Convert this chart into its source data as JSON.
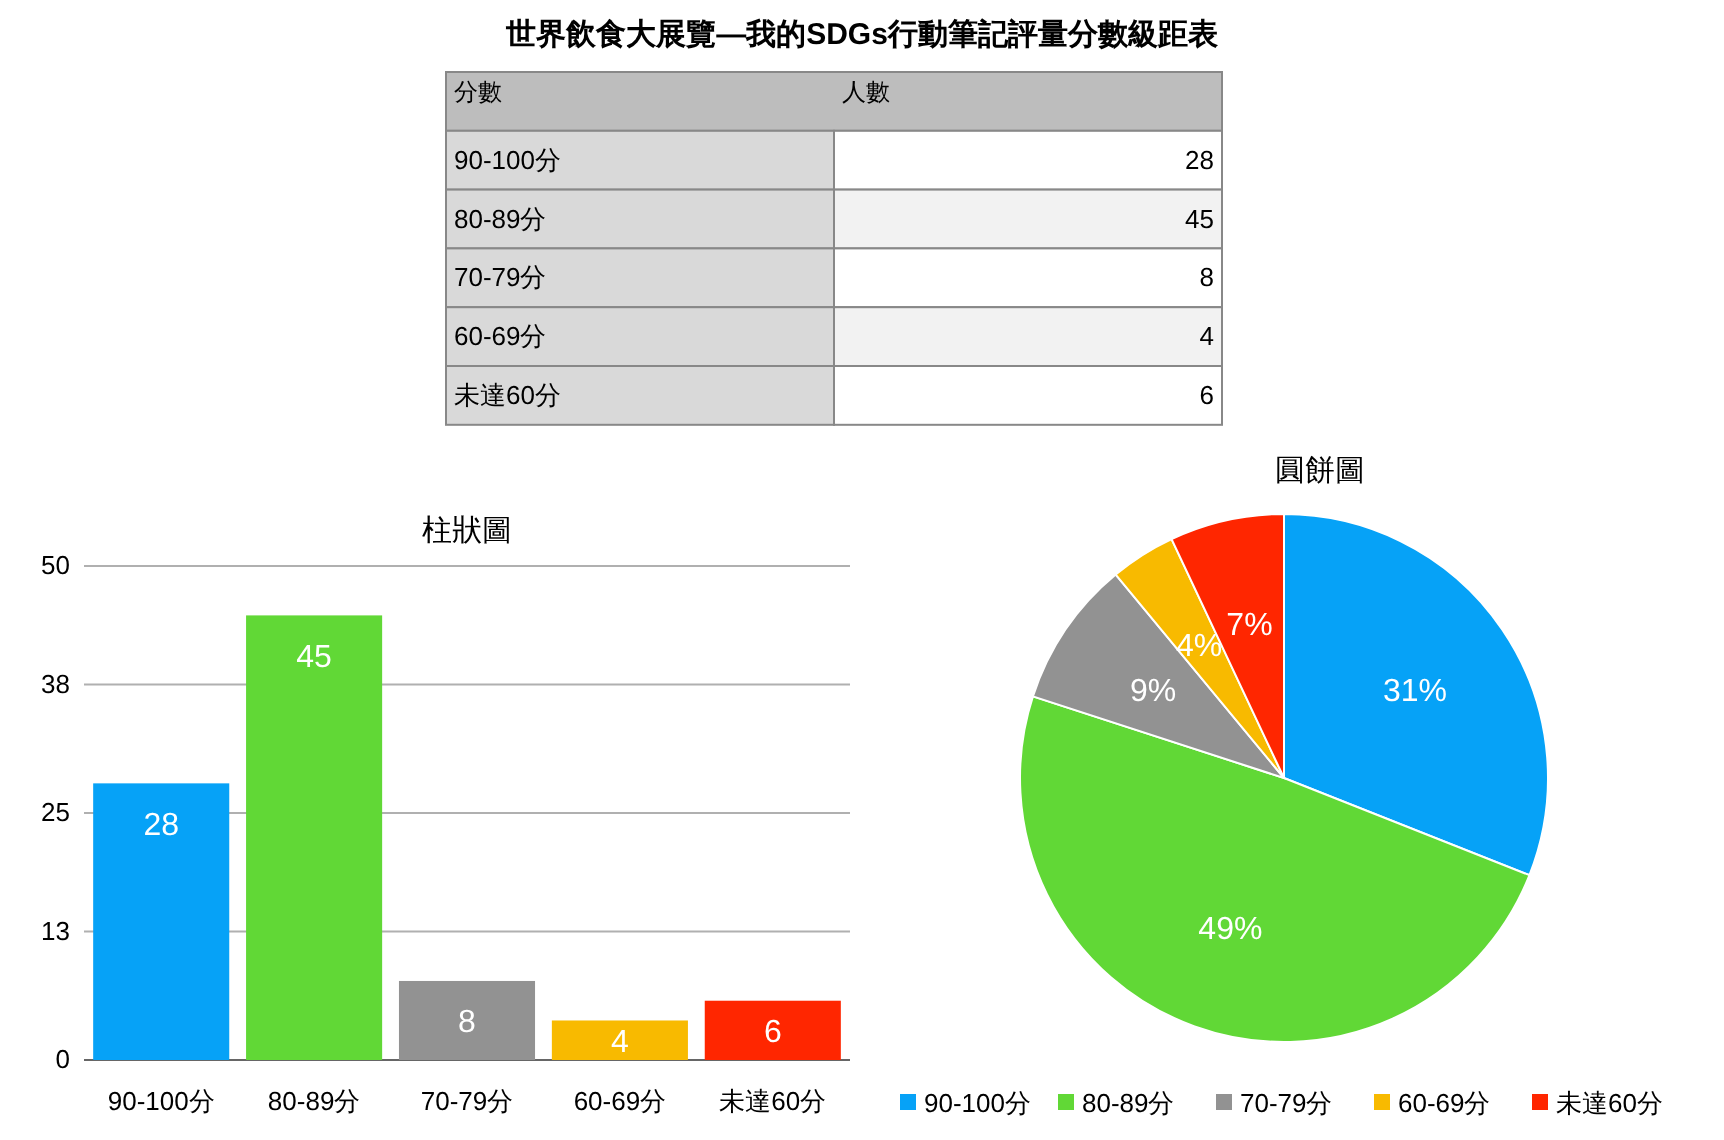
{
  "chart_data": [
    {
      "type": "other",
      "title": "世界飲食大展覽—我的SDGs行動筆記評量分數級距表",
      "xlabel": "分數",
      "ylabel": "人數",
      "categories": [
        "90-100分",
        "80-89分",
        "70-79分",
        "60-69分",
        "未達60分"
      ],
      "values": [
        28,
        45,
        8,
        4,
        6
      ],
      "data_labels": true
    },
    {
      "type": "bar",
      "title": "柱狀圖",
      "categories": [
        "90-100分",
        "80-89分",
        "70-79分",
        "60-69分",
        "未達60分"
      ],
      "values": [
        28,
        45,
        8,
        4,
        6
      ],
      "colors": [
        "#06a2f7",
        "#61d836",
        "#929292",
        "#f8ba00",
        "#ff2600"
      ],
      "ylim": [
        0,
        50
      ],
      "yticks": [
        0,
        13,
        25,
        38,
        50
      ],
      "grid": "y",
      "data_labels": true
    },
    {
      "type": "pie",
      "title": "圓餅圖",
      "categories": [
        "90-100分",
        "80-89分",
        "70-79分",
        "60-69分",
        "未達60分"
      ],
      "values": [
        31,
        49,
        9,
        4,
        7
      ],
      "value_labels": [
        "31%",
        "49%",
        "9%",
        "4%",
        "7%"
      ],
      "colors": [
        "#06a2f7",
        "#61d836",
        "#929292",
        "#f8ba00",
        "#ff2600"
      ],
      "legend": "bottom"
    }
  ]
}
